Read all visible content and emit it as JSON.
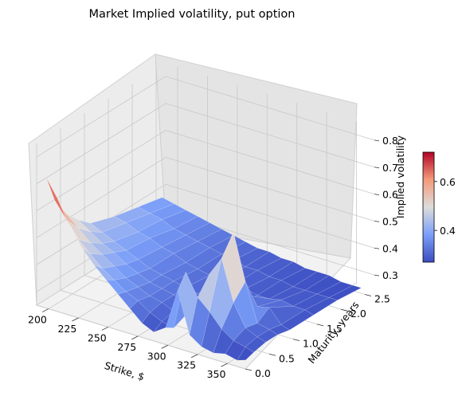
{
  "chart_data": {
    "type": "surface3d",
    "title": "Market Implied volatility, put option",
    "xlabel": "Strike, $",
    "ylabel": "Maturity, years",
    "zlabel": "Implied volatility",
    "xlim": [
      190,
      365
    ],
    "ylim": [
      0,
      2.7
    ],
    "zlim": [
      0.25,
      0.85
    ],
    "x_ticks": [
      "200",
      "225",
      "250",
      "275",
      "300",
      "325",
      "350"
    ],
    "y_ticks": [
      "0.0",
      "0.5",
      "1.0",
      "1.5",
      "2.0",
      "2.5"
    ],
    "z_ticks": [
      "0.3",
      "0.4",
      "0.5",
      "0.6",
      "0.7",
      "0.8"
    ],
    "colorbar": {
      "colormap": "coolwarm",
      "range": [
        0.27,
        0.72
      ],
      "ticks": [
        "0.4",
        "0.6"
      ]
    },
    "grid": true,
    "strikes": [
      195,
      205,
      215,
      225,
      235,
      245,
      255,
      265,
      275,
      285,
      295,
      305,
      315,
      325,
      335,
      345,
      355,
      362
    ],
    "maturities": [
      0.08,
      0.25,
      0.5,
      0.75,
      1.0,
      1.5,
      2.0,
      2.5
    ],
    "implied_volatility": [
      [
        0.72,
        0.62,
        0.54,
        0.49,
        0.45,
        0.42,
        0.4,
        0.38
      ],
      [
        0.65,
        0.56,
        0.5,
        0.46,
        0.43,
        0.41,
        0.39,
        0.37
      ],
      [
        0.57,
        0.5,
        0.46,
        0.43,
        0.41,
        0.39,
        0.38,
        0.36
      ],
      [
        0.5,
        0.46,
        0.43,
        0.41,
        0.39,
        0.38,
        0.36,
        0.35
      ],
      [
        0.45,
        0.42,
        0.4,
        0.38,
        0.37,
        0.36,
        0.35,
        0.34
      ],
      [
        0.41,
        0.39,
        0.37,
        0.36,
        0.35,
        0.35,
        0.34,
        0.33
      ],
      [
        0.37,
        0.36,
        0.35,
        0.34,
        0.34,
        0.33,
        0.33,
        0.32
      ],
      [
        0.33,
        0.34,
        0.33,
        0.33,
        0.33,
        0.32,
        0.32,
        0.31
      ],
      [
        0.29,
        0.31,
        0.32,
        0.32,
        0.32,
        0.31,
        0.31,
        0.3
      ],
      [
        0.27,
        0.29,
        0.3,
        0.31,
        0.31,
        0.31,
        0.3,
        0.3
      ],
      [
        0.3,
        0.28,
        0.3,
        0.3,
        0.3,
        0.3,
        0.3,
        0.29
      ],
      [
        0.45,
        0.5,
        0.36,
        0.32,
        0.3,
        0.3,
        0.29,
        0.29
      ],
      [
        0.3,
        0.42,
        0.48,
        0.34,
        0.3,
        0.29,
        0.29,
        0.28
      ],
      [
        0.27,
        0.38,
        0.55,
        0.62,
        0.36,
        0.29,
        0.28,
        0.28
      ],
      [
        0.26,
        0.33,
        0.4,
        0.45,
        0.33,
        0.3,
        0.28,
        0.28
      ],
      [
        0.27,
        0.3,
        0.32,
        0.31,
        0.34,
        0.29,
        0.28,
        0.27
      ],
      [
        0.26,
        0.29,
        0.3,
        0.3,
        0.29,
        0.29,
        0.28,
        0.27
      ],
      [
        0.27,
        0.28,
        0.29,
        0.29,
        0.28,
        0.28,
        0.28,
        0.27
      ]
    ]
  }
}
